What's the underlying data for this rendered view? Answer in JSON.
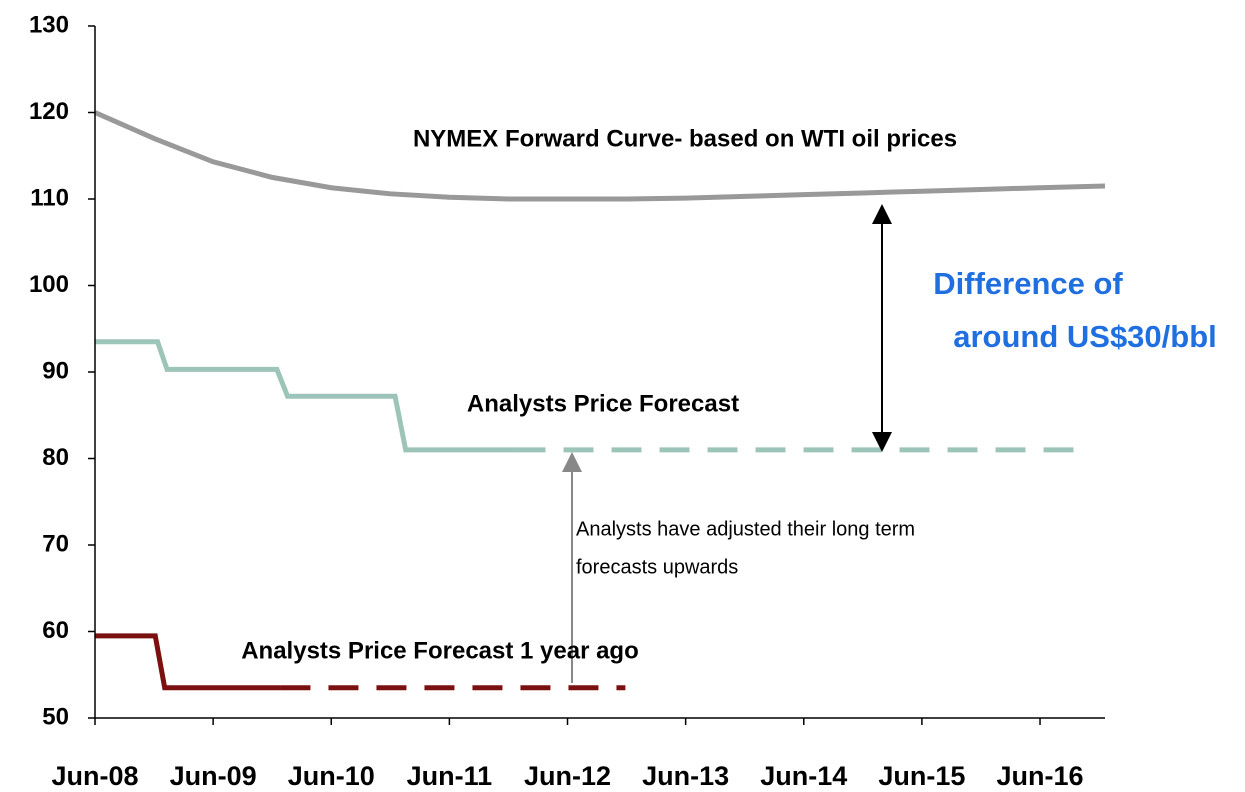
{
  "chart_data": {
    "type": "line",
    "annotations": [
      "NYMEX Forward Curve- based on WTI oil prices",
      "Analysts Price Forecast",
      "Analysts Price Forecast 1 year ago",
      "Difference of",
      "around US$30/bbl",
      "Analysts have adjusted their long term",
      "forecasts upwards"
    ],
    "xlim": [
      2008.5,
      2017.05
    ],
    "xticks": [
      {
        "value": 2008.5,
        "label": "Jun-08"
      },
      {
        "value": 2009.5,
        "label": "Jun-09"
      },
      {
        "value": 2010.5,
        "label": "Jun-10"
      },
      {
        "value": 2011.5,
        "label": "Jun-11"
      },
      {
        "value": 2012.5,
        "label": "Jun-12"
      },
      {
        "value": 2013.5,
        "label": "Jun-13"
      },
      {
        "value": 2014.5,
        "label": "Jun-14"
      },
      {
        "value": 2015.5,
        "label": "Jun-15"
      },
      {
        "value": 2016.5,
        "label": "Jun-16"
      }
    ],
    "ylim": [
      50,
      130
    ],
    "yticks": [
      50,
      60,
      70,
      80,
      90,
      100,
      110,
      120,
      130
    ],
    "series": [
      {
        "name": "NYMEX Forward Curve- based on WTI oil prices",
        "color": "#999999",
        "dashed": false,
        "x": [
          2008.5,
          2009,
          2009.5,
          2010,
          2010.5,
          2011,
          2011.5,
          2012,
          2012.5,
          2013,
          2013.5,
          2014,
          2014.5,
          2015,
          2015.5,
          2016,
          2016.5,
          2017.05
        ],
        "values": [
          120,
          117,
          114.3,
          112.5,
          111.3,
          110.6,
          110.2,
          110,
          110,
          110,
          110.1,
          110.3,
          110.5,
          110.7,
          110.9,
          111.1,
          111.3,
          111.5
        ]
      },
      {
        "name": "Analysts Price Forecast",
        "color": "#9dc4b8",
        "dashed": false,
        "x": [
          2008.5,
          2009.03,
          2009.11,
          2010.04,
          2010.13,
          2011.04,
          2011.13,
          2012.06
        ],
        "values": [
          93.5,
          93.5,
          90.3,
          90.3,
          87.2,
          87.2,
          81,
          81
        ]
      },
      {
        "color": "#9dc4b8",
        "dashed": true,
        "x": [
          2012.06,
          2016.85
        ],
        "values": [
          81,
          81
        ]
      },
      {
        "name": "Analysts Price Forecast 1 year ago",
        "color": "#7b1010",
        "dashed": false,
        "x": [
          2008.5,
          2009.01,
          2009.09,
          2010.07
        ],
        "values": [
          59.5,
          59.5,
          53.5,
          53.5
        ]
      },
      {
        "color": "#7b1010",
        "dashed": true,
        "x": [
          2010.07,
          2012.99
        ],
        "values": [
          53.5,
          53.5
        ]
      }
    ]
  }
}
